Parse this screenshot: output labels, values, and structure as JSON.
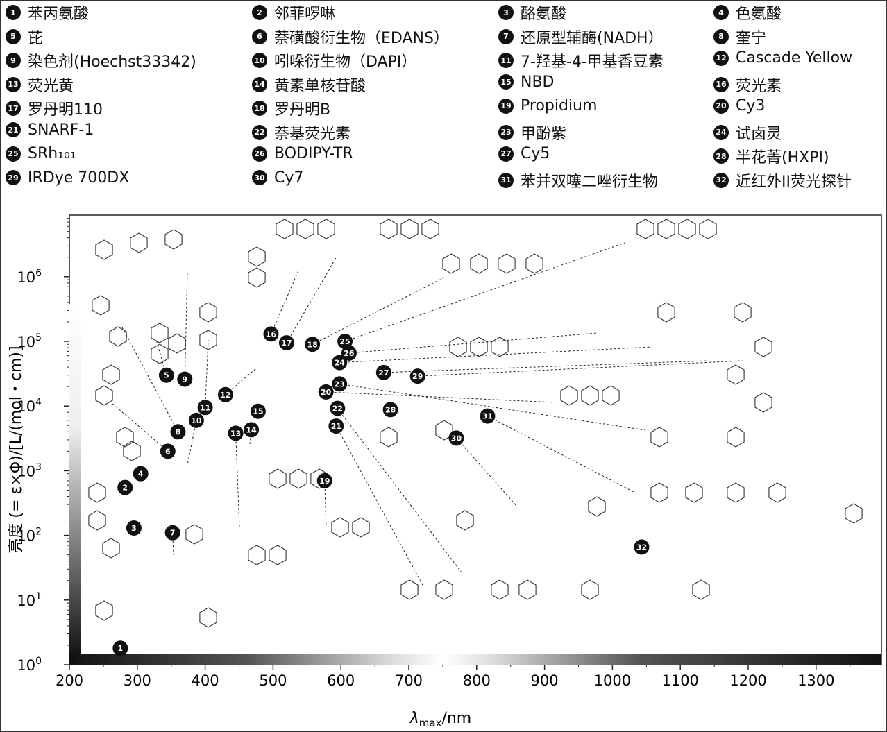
{
  "legend": [
    {
      "n": "1",
      "label": "苯丙氨酸"
    },
    {
      "n": "2",
      "label": "邻菲啰啉"
    },
    {
      "n": "3",
      "label": "酪氨酸"
    },
    {
      "n": "4",
      "label": "色氨酸"
    },
    {
      "n": "5",
      "label": "芘"
    },
    {
      "n": "6",
      "label": "萘磺酸衍生物（EDANS）"
    },
    {
      "n": "7",
      "label": "还原型辅酶(NADH）"
    },
    {
      "n": "8",
      "label": "奎宁"
    },
    {
      "n": "9",
      "label": "染色剂(Hoechst33342)"
    },
    {
      "n": "10",
      "label": "吲哚衍生物（DAPI）"
    },
    {
      "n": "11",
      "label": "7-羟基-4-甲基香豆素"
    },
    {
      "n": "12",
      "label": "Cascade Yellow"
    },
    {
      "n": "13",
      "label": "荧光黄"
    },
    {
      "n": "14",
      "label": "黄素单核苷酸"
    },
    {
      "n": "15",
      "label": "NBD"
    },
    {
      "n": "16",
      "label": "荧光素"
    },
    {
      "n": "17",
      "label": "罗丹明110"
    },
    {
      "n": "18",
      "label": "罗丹明B"
    },
    {
      "n": "19",
      "label": "Propidium"
    },
    {
      "n": "20",
      "label": "Cy3"
    },
    {
      "n": "21",
      "label": "SNARF-1"
    },
    {
      "n": "22",
      "label": "萘基荧光素"
    },
    {
      "n": "23",
      "label": "甲酚紫"
    },
    {
      "n": "24",
      "label": "试卤灵"
    },
    {
      "n": "25",
      "label": "SRh₁₀₁"
    },
    {
      "n": "26",
      "label": "BODIPY-TR"
    },
    {
      "n": "27",
      "label": "Cy5"
    },
    {
      "n": "28",
      "label": "半花菁(HXPI)"
    },
    {
      "n": "29",
      "label": "IRDye 700DX"
    },
    {
      "n": "30",
      "label": "Cy7"
    },
    {
      "n": "31",
      "label": "苯并双噻二唑衍生物"
    },
    {
      "n": "32",
      "label": "近红外II荧光探针"
    }
  ],
  "chart_data": {
    "type": "scatter",
    "title": "",
    "xlabel": "λmax/nm",
    "ylabel": "亮度 (= ε×Φ)/[L/(mol・cm)]",
    "xlim": [
      200,
      1390
    ],
    "ylim": [
      1,
      10000000
    ],
    "yscale": "log",
    "xticks": [
      "200",
      "300",
      "400",
      "500",
      "600",
      "700",
      "800",
      "900",
      "1000",
      "1100",
      "1200",
      "1300"
    ],
    "yticks": [
      {
        "base": "10",
        "exp": "0"
      },
      {
        "base": "10",
        "exp": "1"
      },
      {
        "base": "10",
        "exp": "2"
      },
      {
        "base": "10",
        "exp": "3"
      },
      {
        "base": "10",
        "exp": "4"
      },
      {
        "base": "10",
        "exp": "5"
      },
      {
        "base": "10",
        "exp": "6"
      }
    ],
    "points": [
      {
        "n": "1",
        "x": 275,
        "y": 1.8
      },
      {
        "n": "2",
        "x": 282,
        "y": 550
      },
      {
        "n": "3",
        "x": 295,
        "y": 130
      },
      {
        "n": "4",
        "x": 305,
        "y": 900
      },
      {
        "n": "5",
        "x": 343,
        "y": 30000
      },
      {
        "n": "6",
        "x": 345,
        "y": 2000
      },
      {
        "n": "7",
        "x": 352,
        "y": 110
      },
      {
        "n": "8",
        "x": 360,
        "y": 4000
      },
      {
        "n": "9",
        "x": 370,
        "y": 26000
      },
      {
        "n": "10",
        "x": 387,
        "y": 6000
      },
      {
        "n": "11",
        "x": 400,
        "y": 9500
      },
      {
        "n": "12",
        "x": 430,
        "y": 15000
      },
      {
        "n": "13",
        "x": 445,
        "y": 3800
      },
      {
        "n": "14",
        "x": 468,
        "y": 4300
      },
      {
        "n": "15",
        "x": 478,
        "y": 8300
      },
      {
        "n": "16",
        "x": 497,
        "y": 130000
      },
      {
        "n": "17",
        "x": 520,
        "y": 95000
      },
      {
        "n": "18",
        "x": 558,
        "y": 90000
      },
      {
        "n": "19",
        "x": 576,
        "y": 700
      },
      {
        "n": "20",
        "x": 578,
        "y": 16500
      },
      {
        "n": "21",
        "x": 593,
        "y": 4900
      },
      {
        "n": "22",
        "x": 595,
        "y": 9200
      },
      {
        "n": "23",
        "x": 598,
        "y": 22000
      },
      {
        "n": "24",
        "x": 598,
        "y": 47000
      },
      {
        "n": "25",
        "x": 606,
        "y": 100000
      },
      {
        "n": "26",
        "x": 612,
        "y": 66000
      },
      {
        "n": "27",
        "x": 663,
        "y": 33000
      },
      {
        "n": "28",
        "x": 673,
        "y": 8800
      },
      {
        "n": "29",
        "x": 713,
        "y": 29000
      },
      {
        "n": "30",
        "x": 770,
        "y": 3200
      },
      {
        "n": "31",
        "x": 816,
        "y": 7000
      },
      {
        "n": "32",
        "x": 1043,
        "y": 66
      }
    ]
  }
}
